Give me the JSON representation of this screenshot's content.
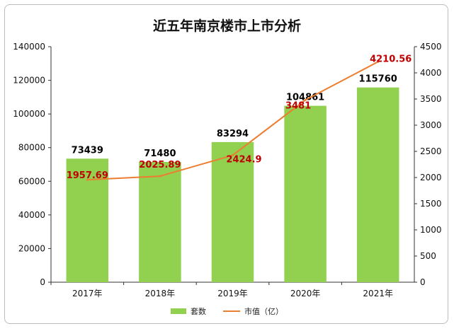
{
  "chart_data": {
    "type": "bar",
    "title": "近五年南京楼市上市分析",
    "categories": [
      "2017年",
      "2018年",
      "2019年",
      "2020年",
      "2021年"
    ],
    "series": [
      {
        "name": "套数",
        "type": "bar",
        "axis": "left",
        "values": [
          73439,
          71480,
          83294,
          104861,
          115760
        ],
        "color": "#92d050"
      },
      {
        "name": "市值（亿）",
        "type": "line",
        "axis": "right",
        "values": [
          1957.69,
          2025.89,
          2424.9,
          3481,
          4210.56
        ],
        "color": "#ed7d31"
      }
    ],
    "y_left": {
      "min": 0,
      "max": 140000,
      "ticks": [
        0,
        20000,
        40000,
        60000,
        80000,
        100000,
        120000,
        140000
      ]
    },
    "y_right": {
      "min": 0,
      "max": 4500,
      "ticks": [
        0,
        500,
        1000,
        1500,
        2000,
        2500,
        3000,
        3500,
        4000,
        4500
      ]
    },
    "bar_labels": [
      "73439",
      "71480",
      "83294",
      "104861",
      "115760"
    ],
    "line_labels": [
      "1957.69",
      "2025.89",
      "2424.9",
      "3481",
      "4210.56"
    ],
    "line_label_color": "#c00000",
    "grid": false,
    "legend_position": "bottom"
  }
}
